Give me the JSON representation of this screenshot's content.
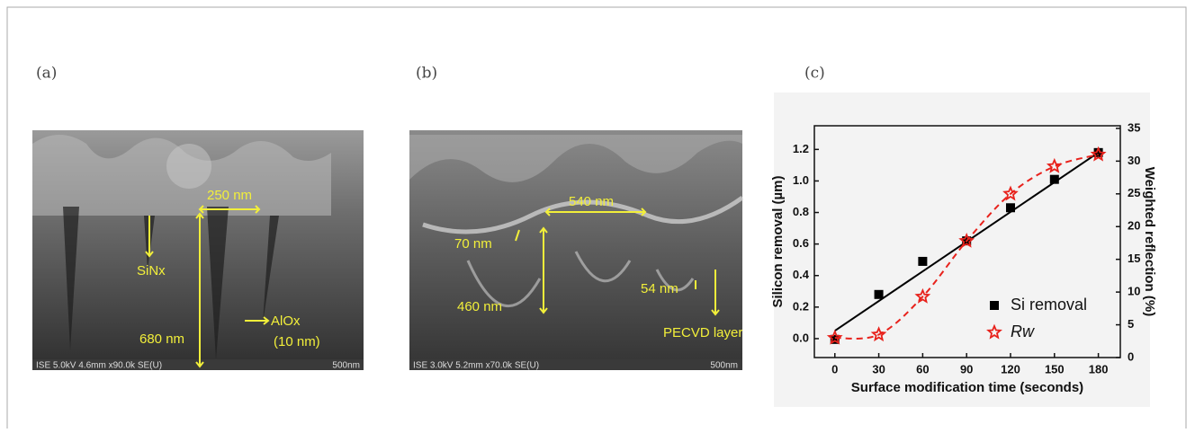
{
  "panels": [
    {
      "label": "(a)",
      "annotations": [
        "250 nm",
        "SiNx",
        "680 nm",
        "AlOx",
        "(10 nm)"
      ],
      "info_bar": "ISE 5.0kV 4.6mm x90.0k SE(U)",
      "scale": "500nm"
    },
    {
      "label": "(b)",
      "annotations": [
        "540 nm",
        "70 nm",
        "460 nm",
        "54 nm",
        "PECVD layer"
      ],
      "info_bar": "ISE 3.0kV 5.2mm x70.0k SE(U)",
      "scale": "500nm"
    },
    {
      "label": "(c)"
    }
  ],
  "chart_data": {
    "type": "scatter",
    "x_label": "Surface modification time (seconds)",
    "y_label": "Silicon removal (µm)",
    "y2_label": "Weighted reflection (%)",
    "x": [
      0,
      30,
      60,
      90,
      120,
      150,
      180
    ],
    "series": [
      {
        "name": "Si removal",
        "color": "#000000",
        "marker": "square",
        "values": [
          -0.005,
          0.28,
          0.49,
          0.62,
          0.83,
          1.01,
          1.18
        ]
      },
      {
        "name": "Rw",
        "color": "#e8221c",
        "marker": "star",
        "axis": "y2",
        "dashed_curve": true,
        "values": [
          3.0,
          3.5,
          9.3,
          17.8,
          25.0,
          29.2,
          31.0
        ]
      }
    ],
    "fit_line": {
      "x": [
        0,
        180
      ],
      "values": [
        0.05,
        1.18
      ],
      "color": "#000000"
    },
    "xlim": [
      -14,
      195
    ],
    "xticks": [
      0,
      30,
      60,
      90,
      120,
      150,
      180
    ],
    "ylim": [
      -0.12,
      1.35
    ],
    "yticks": [
      {
        "value": 0,
        "label": "0.0"
      },
      0.2,
      0.4,
      0.6,
      0.8,
      {
        "value": 1,
        "label": "1.0"
      },
      1.2
    ],
    "y2lim": [
      0,
      35.4
    ],
    "y2ticks": [
      0,
      5,
      10,
      15,
      20,
      25,
      30,
      35
    ],
    "legend": "lower right",
    "grid": false
  }
}
